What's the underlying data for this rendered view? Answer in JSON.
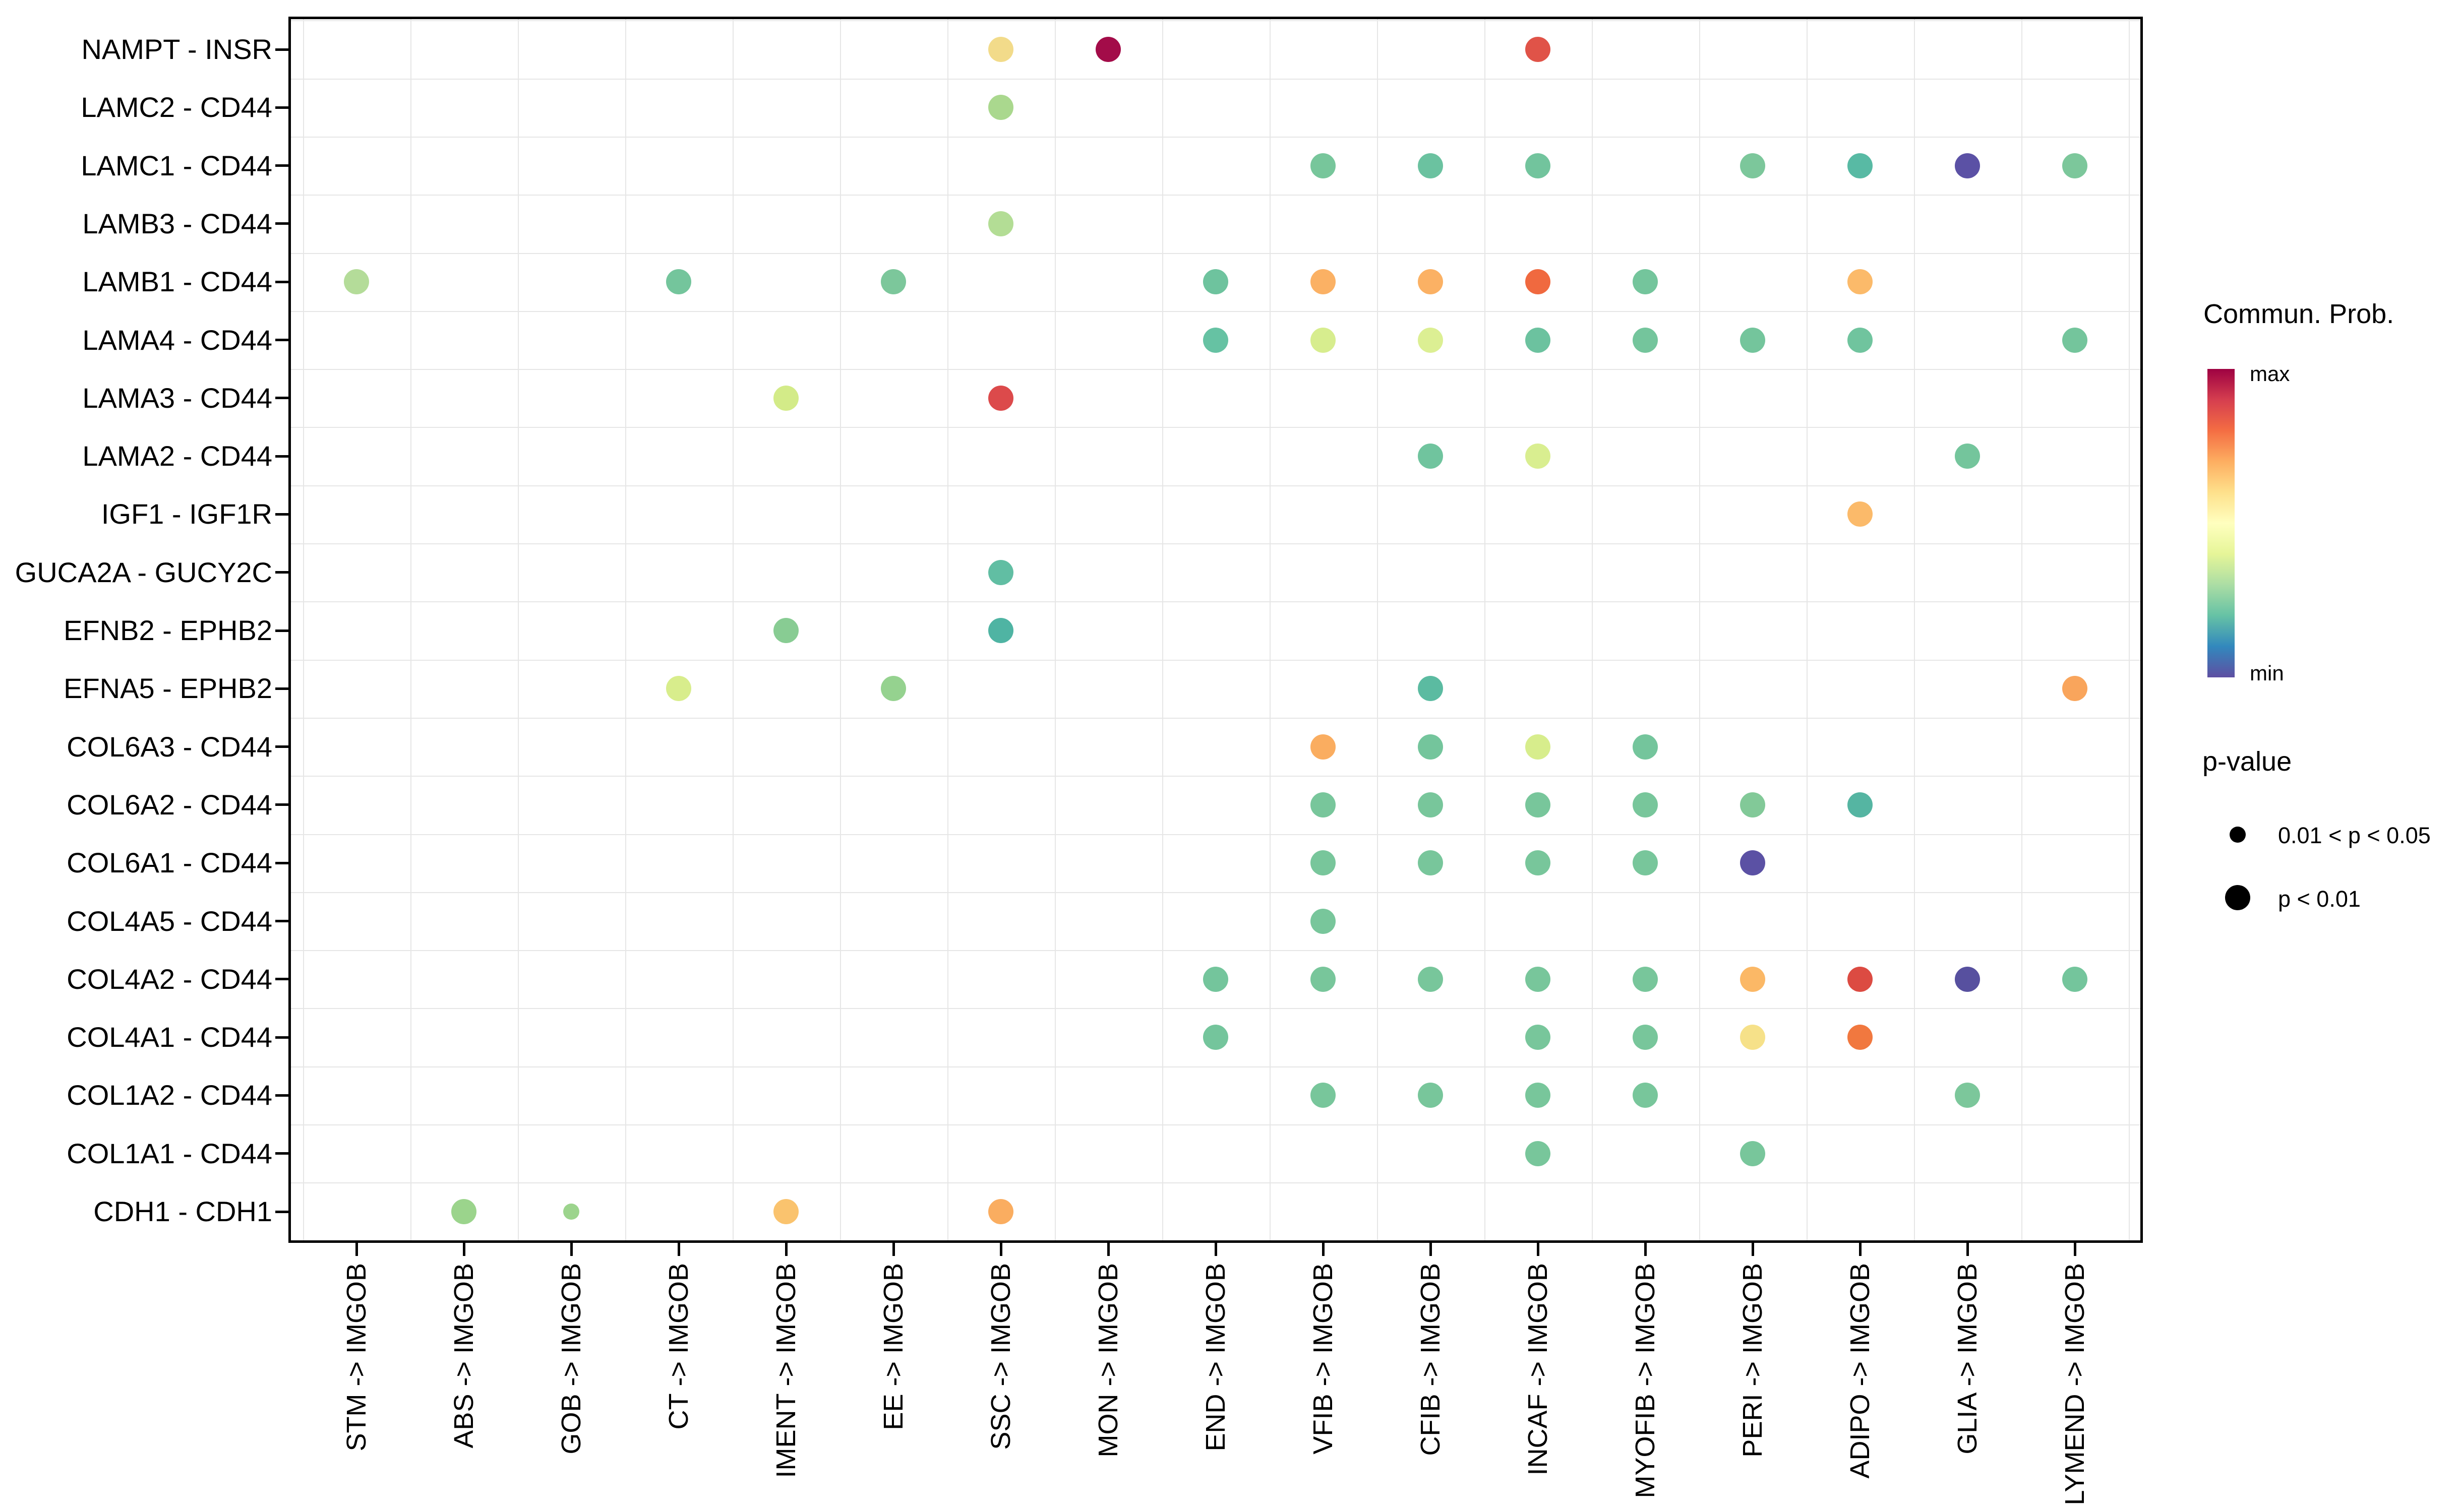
{
  "legend": {
    "colorbar_title": "Commun. Prob.",
    "max_label": "max",
    "min_label": "min",
    "gradient": [
      "#9E0142",
      "#D53E4F",
      "#F46D43",
      "#FDAE61",
      "#FEE08B",
      "#FFFFBF",
      "#E6F598",
      "#ABDDA4",
      "#66C2A5",
      "#3288BD",
      "#5E4FA2"
    ],
    "pvalue_title": "p-value",
    "sizes": [
      {
        "label": "0.01 < p < 0.05",
        "diameter": 32
      },
      {
        "label": "p < 0.01",
        "diameter": 50
      }
    ]
  },
  "chart_data": {
    "type": "scatter",
    "subtype": "dotplot-communication-probability",
    "grid": true,
    "legend_position": "right",
    "x_categories": [
      "STM -> IMGOB",
      "ABS -> IMGOB",
      "GOB -> IMGOB",
      "CT -> IMGOB",
      "IMENT -> IMGOB",
      "EE -> IMGOB",
      "SSC -> IMGOB",
      "MON -> IMGOB",
      "END -> IMGOB",
      "VFIB -> IMGOB",
      "CFIB -> IMGOB",
      "INCAF -> IMGOB",
      "MYOFIB -> IMGOB",
      "PERI -> IMGOB",
      "ADIPO -> IMGOB",
      "GLIA -> IMGOB",
      "LYMEND -> IMGOB"
    ],
    "y_categories": [
      "NAMPT - INSR",
      "LAMC2 - CD44",
      "LAMC1 - CD44",
      "LAMB3 - CD44",
      "LAMB1 - CD44",
      "LAMA4 - CD44",
      "LAMA3 - CD44",
      "LAMA2 - CD44",
      "IGF1 - IGF1R",
      "GUCA2A - GUCY2C",
      "EFNB2 - EPHB2",
      "EFNA5 - EPHB2",
      "COL6A3 - CD44",
      "COL6A2 - CD44",
      "COL6A1 - CD44",
      "COL4A5 - CD44",
      "COL4A2 - CD44",
      "COL4A1 - CD44",
      "COL1A2 - CD44",
      "COL1A1 - CD44",
      "CDH1 - CDH1"
    ],
    "color_scale": {
      "name": "Spectral (reversed)",
      "max": "#9E0142",
      "min": "#5E4FA2"
    },
    "points": [
      {
        "r": 0,
        "c": 6,
        "color": "#F2DB8A",
        "p": "p < 0.01"
      },
      {
        "r": 0,
        "c": 7,
        "color": "#A30C49",
        "p": "p < 0.01"
      },
      {
        "r": 0,
        "c": 11,
        "color": "#E05348",
        "p": "p < 0.01"
      },
      {
        "r": 1,
        "c": 6,
        "color": "#AAD88E",
        "p": "p < 0.01"
      },
      {
        "r": 2,
        "c": 9,
        "color": "#77C69B",
        "p": "p < 0.01"
      },
      {
        "r": 2,
        "c": 10,
        "color": "#6BC2A0",
        "p": "p < 0.01"
      },
      {
        "r": 2,
        "c": 11,
        "color": "#72C49D",
        "p": "p < 0.01"
      },
      {
        "r": 2,
        "c": 13,
        "color": "#7CC79B",
        "p": "p < 0.01"
      },
      {
        "r": 2,
        "c": 14,
        "color": "#58BAA4",
        "p": "p < 0.01"
      },
      {
        "r": 2,
        "c": 15,
        "color": "#5B51A5",
        "p": "p < 0.01"
      },
      {
        "r": 2,
        "c": 16,
        "color": "#7CC79B",
        "p": "p < 0.01"
      },
      {
        "r": 3,
        "c": 6,
        "color": "#B3DD95",
        "p": "p < 0.01"
      },
      {
        "r": 4,
        "c": 0,
        "color": "#B4DC99",
        "p": "p < 0.01"
      },
      {
        "r": 4,
        "c": 3,
        "color": "#74C59C",
        "p": "p < 0.01"
      },
      {
        "r": 4,
        "c": 5,
        "color": "#7CC79B",
        "p": "p < 0.01"
      },
      {
        "r": 4,
        "c": 8,
        "color": "#6EC39E",
        "p": "p < 0.01"
      },
      {
        "r": 4,
        "c": 9,
        "color": "#FBB164",
        "p": "p < 0.01"
      },
      {
        "r": 4,
        "c": 10,
        "color": "#FBB164",
        "p": "p < 0.01"
      },
      {
        "r": 4,
        "c": 11,
        "color": "#F0693F",
        "p": "p < 0.01"
      },
      {
        "r": 4,
        "c": 12,
        "color": "#74C59C",
        "p": "p < 0.01"
      },
      {
        "r": 4,
        "c": 14,
        "color": "#FBBA6A",
        "p": "p < 0.01"
      },
      {
        "r": 5,
        "c": 8,
        "color": "#66C2A3",
        "p": "p < 0.01"
      },
      {
        "r": 5,
        "c": 9,
        "color": "#D7ED8E",
        "p": "p < 0.01"
      },
      {
        "r": 5,
        "c": 10,
        "color": "#DCEF93",
        "p": "p < 0.01"
      },
      {
        "r": 5,
        "c": 11,
        "color": "#6CC29F",
        "p": "p < 0.01"
      },
      {
        "r": 5,
        "c": 12,
        "color": "#74C59C",
        "p": "p < 0.01"
      },
      {
        "r": 5,
        "c": 13,
        "color": "#74C59C",
        "p": "p < 0.01"
      },
      {
        "r": 5,
        "c": 14,
        "color": "#70C49E",
        "p": "p < 0.01"
      },
      {
        "r": 5,
        "c": 16,
        "color": "#74C59C",
        "p": "p < 0.01"
      },
      {
        "r": 6,
        "c": 4,
        "color": "#D3EB88",
        "p": "p < 0.01"
      },
      {
        "r": 6,
        "c": 6,
        "color": "#DC4A4B",
        "p": "p < 0.01"
      },
      {
        "r": 7,
        "c": 10,
        "color": "#70C49E",
        "p": "p < 0.01"
      },
      {
        "r": 7,
        "c": 11,
        "color": "#D9EE90",
        "p": "p < 0.01"
      },
      {
        "r": 7,
        "c": 15,
        "color": "#74C59C",
        "p": "p < 0.01"
      },
      {
        "r": 8,
        "c": 14,
        "color": "#FBBA6A",
        "p": "p < 0.01"
      },
      {
        "r": 9,
        "c": 6,
        "color": "#61BEA3",
        "p": "p < 0.01"
      },
      {
        "r": 10,
        "c": 4,
        "color": "#88CC93",
        "p": "p < 0.01"
      },
      {
        "r": 10,
        "c": 6,
        "color": "#4FB4A3",
        "p": "p < 0.01"
      },
      {
        "r": 11,
        "c": 3,
        "color": "#D8ED8C",
        "p": "p < 0.01"
      },
      {
        "r": 11,
        "c": 5,
        "color": "#95D28F",
        "p": "p < 0.01"
      },
      {
        "r": 11,
        "c": 10,
        "color": "#5BBBA1",
        "p": "p < 0.01"
      },
      {
        "r": 11,
        "c": 16,
        "color": "#F9A55C",
        "p": "p < 0.01"
      },
      {
        "r": 12,
        "c": 9,
        "color": "#FAAD60",
        "p": "p < 0.01"
      },
      {
        "r": 12,
        "c": 10,
        "color": "#74C59C",
        "p": "p < 0.01"
      },
      {
        "r": 12,
        "c": 11,
        "color": "#D7ED8C",
        "p": "p < 0.01"
      },
      {
        "r": 12,
        "c": 12,
        "color": "#74C59C",
        "p": "p < 0.01"
      },
      {
        "r": 13,
        "c": 9,
        "color": "#78C69B",
        "p": "p < 0.01"
      },
      {
        "r": 13,
        "c": 10,
        "color": "#78C69B",
        "p": "p < 0.01"
      },
      {
        "r": 13,
        "c": 11,
        "color": "#78C69B",
        "p": "p < 0.01"
      },
      {
        "r": 13,
        "c": 12,
        "color": "#78C69B",
        "p": "p < 0.01"
      },
      {
        "r": 13,
        "c": 13,
        "color": "#82C998",
        "p": "p < 0.01"
      },
      {
        "r": 13,
        "c": 14,
        "color": "#55B5A2",
        "p": "p < 0.01"
      },
      {
        "r": 14,
        "c": 9,
        "color": "#78C69B",
        "p": "p < 0.01"
      },
      {
        "r": 14,
        "c": 10,
        "color": "#78C69B",
        "p": "p < 0.01"
      },
      {
        "r": 14,
        "c": 11,
        "color": "#78C69B",
        "p": "p < 0.01"
      },
      {
        "r": 14,
        "c": 12,
        "color": "#78C69B",
        "p": "p < 0.01"
      },
      {
        "r": 14,
        "c": 13,
        "color": "#5B51A4",
        "p": "p < 0.01"
      },
      {
        "r": 15,
        "c": 9,
        "color": "#78C69B",
        "p": "p < 0.01"
      },
      {
        "r": 16,
        "c": 8,
        "color": "#74C59C",
        "p": "p < 0.01"
      },
      {
        "r": 16,
        "c": 9,
        "color": "#78C69B",
        "p": "p < 0.01"
      },
      {
        "r": 16,
        "c": 10,
        "color": "#78C69B",
        "p": "p < 0.01"
      },
      {
        "r": 16,
        "c": 11,
        "color": "#78C69B",
        "p": "p < 0.01"
      },
      {
        "r": 16,
        "c": 12,
        "color": "#78C69B",
        "p": "p < 0.01"
      },
      {
        "r": 16,
        "c": 13,
        "color": "#FBB866",
        "p": "p < 0.01"
      },
      {
        "r": 16,
        "c": 14,
        "color": "#DC4B42",
        "p": "p < 0.01"
      },
      {
        "r": 16,
        "c": 15,
        "color": "#57509F",
        "p": "p < 0.01"
      },
      {
        "r": 16,
        "c": 16,
        "color": "#74C59C",
        "p": "p < 0.01"
      },
      {
        "r": 17,
        "c": 8,
        "color": "#74C59C",
        "p": "p < 0.01"
      },
      {
        "r": 17,
        "c": 11,
        "color": "#78C69B",
        "p": "p < 0.01"
      },
      {
        "r": 17,
        "c": 12,
        "color": "#78C69B",
        "p": "p < 0.01"
      },
      {
        "r": 17,
        "c": 13,
        "color": "#F6E189",
        "p": "p < 0.01"
      },
      {
        "r": 17,
        "c": 14,
        "color": "#F1783F",
        "p": "p < 0.01"
      },
      {
        "r": 18,
        "c": 9,
        "color": "#78C69B",
        "p": "p < 0.01"
      },
      {
        "r": 18,
        "c": 10,
        "color": "#78C69B",
        "p": "p < 0.01"
      },
      {
        "r": 18,
        "c": 11,
        "color": "#78C69B",
        "p": "p < 0.01"
      },
      {
        "r": 18,
        "c": 12,
        "color": "#78C69B",
        "p": "p < 0.01"
      },
      {
        "r": 18,
        "c": 15,
        "color": "#7CC79B",
        "p": "p < 0.01"
      },
      {
        "r": 19,
        "c": 11,
        "color": "#78C69B",
        "p": "p < 0.01"
      },
      {
        "r": 19,
        "c": 13,
        "color": "#78C69B",
        "p": "p < 0.01"
      },
      {
        "r": 20,
        "c": 1,
        "color": "#9BD48C",
        "p": "p < 0.01"
      },
      {
        "r": 20,
        "c": 2,
        "color": "#9CD48D",
        "p": "0.01 < p < 0.05"
      },
      {
        "r": 20,
        "c": 4,
        "color": "#FAC36E",
        "p": "p < 0.01"
      },
      {
        "r": 20,
        "c": 6,
        "color": "#FAAD60",
        "p": "p < 0.01"
      }
    ]
  }
}
